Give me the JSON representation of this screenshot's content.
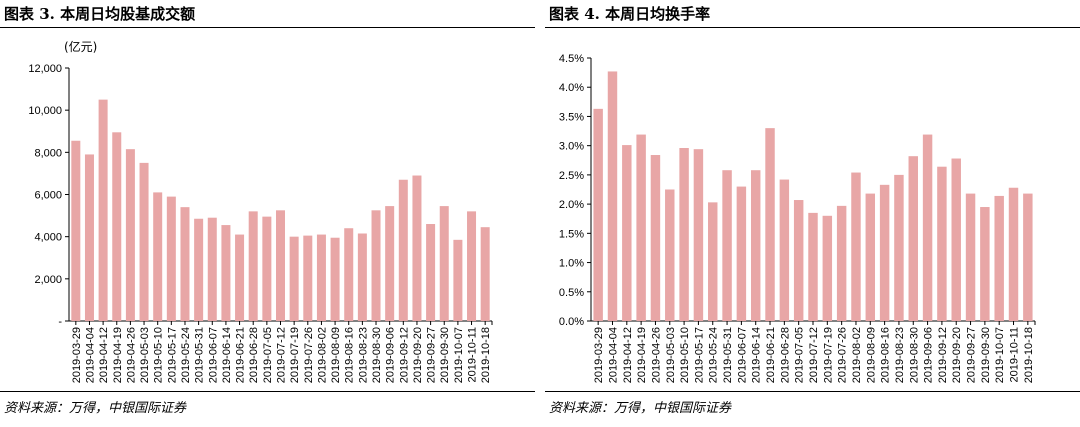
{
  "left": {
    "title": "图表 3. 本周日均股基成交额",
    "source": "资料来源：万得，中银国际证券"
  },
  "right": {
    "title": "图表 4. 本周日均换手率",
    "source": "资料来源：万得，中银国际证券"
  },
  "colors": {
    "bar": "#e8a6a6",
    "axis": "#000000"
  },
  "chart_data": [
    {
      "type": "bar",
      "title": "本周日均股基成交额",
      "unit": "(亿元)",
      "ylim": [
        0,
        12000
      ],
      "yticks": [
        0,
        2000,
        4000,
        6000,
        8000,
        10000,
        12000
      ],
      "ytick_labels": [
        "-",
        "2,000",
        "4,000",
        "6,000",
        "8,000",
        "10,000",
        "12,000"
      ],
      "categories": [
        "2019-03-29",
        "2019-04-04",
        "2019-04-12",
        "2019-04-19",
        "2019-04-26",
        "2019-05-03",
        "2019-05-10",
        "2019-05-17",
        "2019-05-24",
        "2019-05-31",
        "2019-06-07",
        "2019-06-14",
        "2019-06-21",
        "2019-06-28",
        "2019-07-05",
        "2019-07-12",
        "2019-07-19",
        "2019-07-26",
        "2019-08-02",
        "2019-08-09",
        "2019-08-16",
        "2019-08-23",
        "2019-08-30",
        "2019-09-06",
        "2019-09-12",
        "2019-09-20",
        "2019-09-27",
        "2019-09-30",
        "2019-10-07",
        "2019-10-11",
        "2019-10-18"
      ],
      "values": [
        8550,
        7900,
        10500,
        8950,
        8150,
        7500,
        6100,
        5900,
        5400,
        4850,
        4900,
        4550,
        4100,
        5200,
        4950,
        5250,
        4000,
        4050,
        4100,
        3950,
        4400,
        4150,
        5250,
        5450,
        6700,
        6900,
        4600,
        5450,
        3850,
        5200,
        4450
      ]
    },
    {
      "type": "bar",
      "title": "本周日均换手率",
      "ylim": [
        0,
        4.5
      ],
      "yticks": [
        0,
        0.5,
        1,
        1.5,
        2,
        2.5,
        3,
        3.5,
        4,
        4.5
      ],
      "ytick_labels": [
        "0.0%",
        "0.5%",
        "1.0%",
        "1.5%",
        "2.0%",
        "2.5%",
        "3.0%",
        "3.5%",
        "4.0%",
        "4.5%"
      ],
      "categories": [
        "2019-03-29",
        "2019-04-04",
        "2019-04-12",
        "2019-04-19",
        "2019-04-26",
        "2019-05-03",
        "2019-05-10",
        "2019-05-17",
        "2019-05-24",
        "2019-05-31",
        "2019-06-07",
        "2019-06-14",
        "2019-06-21",
        "2019-06-28",
        "2019-07-05",
        "2019-07-12",
        "2019-07-19",
        "2019-07-26",
        "2019-08-02",
        "2019-08-09",
        "2019-08-16",
        "2019-08-23",
        "2019-08-30",
        "2019-09-06",
        "2019-09-12",
        "2019-09-20",
        "2019-09-27",
        "2019-09-30",
        "2019-10-07",
        "2019-10-11",
        "2019-10-18"
      ],
      "values": [
        3.63,
        4.27,
        3.01,
        3.19,
        2.84,
        2.25,
        2.96,
        2.94,
        2.03,
        2.58,
        2.3,
        2.58,
        3.3,
        2.42,
        2.07,
        1.85,
        1.8,
        1.97,
        2.54,
        2.18,
        2.33,
        2.5,
        2.82,
        3.19,
        2.64,
        2.78,
        2.18,
        1.95,
        2.14,
        2.28,
        2.18
      ]
    }
  ]
}
